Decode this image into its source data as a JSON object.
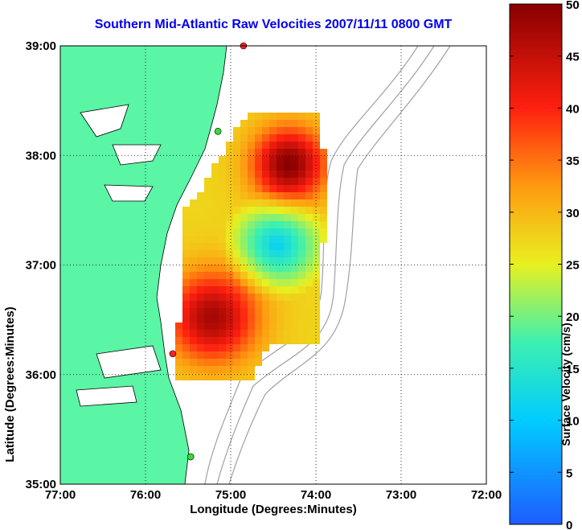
{
  "title": "Southern Mid-Atlantic Raw Velocities 2007/11/11 0800 GMT",
  "xaxis_label": "Longitude (Degrees:Minutes)",
  "yaxis_label": "Latitude (Degrees:Minutes)",
  "colorbar_label": "Surface Velocity (cm/s)",
  "x_ticks": [
    {
      "label": "77:00",
      "value": -77
    },
    {
      "label": "76:00",
      "value": -76
    },
    {
      "label": "75:00",
      "value": -75
    },
    {
      "label": "74:00",
      "value": -74
    },
    {
      "label": "73:00",
      "value": -73
    },
    {
      "label": "72:00",
      "value": -72
    }
  ],
  "y_ticks": [
    {
      "label": "39:00",
      "value": 39
    },
    {
      "label": "38:00",
      "value": 38
    },
    {
      "label": "37:00",
      "value": 37
    },
    {
      "label": "36:00",
      "value": 36
    },
    {
      "label": "35:00",
      "value": 35
    }
  ],
  "colorbar_ticks": [
    0,
    5,
    10,
    15,
    20,
    25,
    30,
    35,
    40,
    45,
    50
  ],
  "colors": {
    "land": "#5af5a5",
    "water": "#ffffff",
    "title": "#0000ee",
    "station": "#ff2020",
    "station_green": "#30e030"
  },
  "map_extent": {
    "lon": [
      -77,
      -72
    ],
    "lat": [
      35,
      39
    ]
  },
  "velocity_range": [
    0,
    50
  ],
  "stations": [
    {
      "lon": -74.85,
      "lat": 39.0
    },
    {
      "lon": -75.15,
      "lat": 38.22
    },
    {
      "lon": -75.68,
      "lat": 36.19
    },
    {
      "lon": -75.47,
      "lat": 35.25
    }
  ]
}
